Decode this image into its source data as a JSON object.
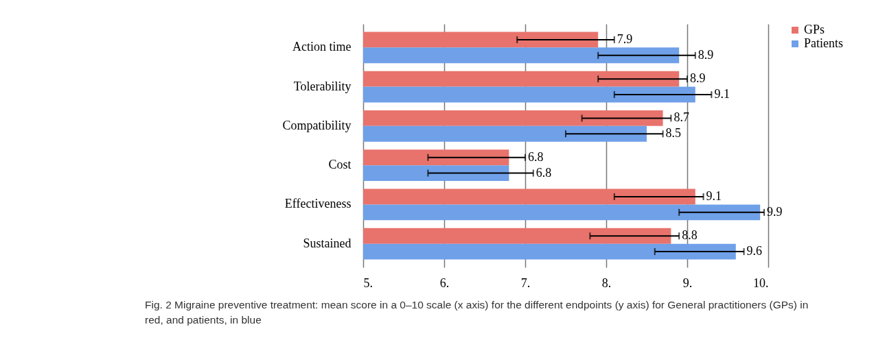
{
  "chart_data": {
    "type": "bar",
    "orientation": "horizontal",
    "categories": [
      "Action time",
      "Tolerability",
      "Compatibility",
      "Cost",
      "Effectiveness",
      "Sustained"
    ],
    "series": [
      {
        "name": "GPs",
        "color": "#e8736c",
        "values": [
          7.9,
          8.9,
          8.7,
          6.8,
          9.1,
          8.8
        ],
        "errors": [
          [
            6.9,
            8.1
          ],
          [
            7.9,
            9.0
          ],
          [
            7.7,
            8.8
          ],
          [
            5.8,
            7.0
          ],
          [
            8.1,
            9.2
          ],
          [
            7.8,
            8.9
          ]
        ]
      },
      {
        "name": "Patients",
        "color": "#6fa0e8",
        "values": [
          8.9,
          9.1,
          8.5,
          6.8,
          9.9,
          9.6
        ],
        "errors": [
          [
            7.9,
            9.1
          ],
          [
            8.1,
            9.3
          ],
          [
            7.5,
            8.7
          ],
          [
            5.8,
            7.1
          ],
          [
            8.9,
            9.95
          ],
          [
            8.6,
            9.7
          ]
        ]
      }
    ],
    "xlim": [
      5,
      10
    ],
    "xticks": [
      {
        "value": 5,
        "label": "5."
      },
      {
        "value": 6,
        "label": "6."
      },
      {
        "value": 7,
        "label": "7."
      },
      {
        "value": 8,
        "label": "8."
      },
      {
        "value": 9,
        "label": "9."
      },
      {
        "value": 10,
        "label": "10."
      }
    ],
    "grid": "x",
    "legend": "right",
    "data_labels": true,
    "annotations": [
      "Fig. 2 Migraine preventive treatment: mean score in a 0–10 scale (x axis) for the different endpoints (y axis) for General practitioners (GPs) in red, and patients, in blue"
    ]
  }
}
